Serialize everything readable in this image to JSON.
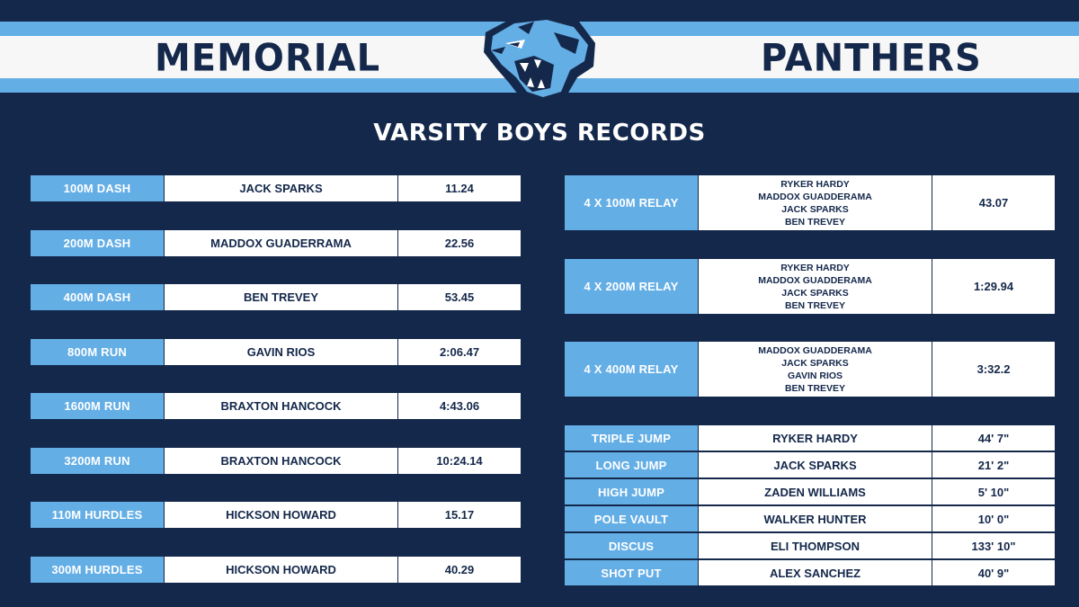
{
  "header": {
    "left_word": "MEMORIAL",
    "right_word": "PANTHERS",
    "logo_icon": "panther-head-icon",
    "title": "VARSITY BOYS RECORDS"
  },
  "colors": {
    "navy": "#14284b",
    "light_blue": "#64aee6",
    "white": "#ffffff"
  },
  "left_records": [
    {
      "event": "100M DASH",
      "athlete": "JACK SPARKS",
      "mark": "11.24"
    },
    {
      "event": "200M DASH",
      "athlete": "MADDOX GUADERRAMA",
      "mark": "22.56"
    },
    {
      "event": "400M DASH",
      "athlete": "BEN TREVEY",
      "mark": "53.45"
    },
    {
      "event": "800M RUN",
      "athlete": "GAVIN RIOS",
      "mark": "2:06.47"
    },
    {
      "event": "1600M RUN",
      "athlete": "BRAXTON HANCOCK",
      "mark": "4:43.06"
    },
    {
      "event": "3200M RUN",
      "athlete": "BRAXTON HANCOCK",
      "mark": "10:24.14"
    },
    {
      "event": "110M HURDLES",
      "athlete": "HICKSON HOWARD",
      "mark": "15.17"
    },
    {
      "event": "300M HURDLES",
      "athlete": "HICKSON HOWARD",
      "mark": "40.29"
    }
  ],
  "relays": [
    {
      "event": "4 X 100M RELAY",
      "athletes": [
        "RYKER HARDY",
        "MADDOX GUADDERAMA",
        "JACK SPARKS",
        "BEN TREVEY"
      ],
      "mark": "43.07"
    },
    {
      "event": "4 X 200M RELAY",
      "athletes": [
        "RYKER HARDY",
        "MADDOX GUADDERAMA",
        "JACK SPARKS",
        "BEN TREVEY"
      ],
      "mark": "1:29.94"
    },
    {
      "event": "4 X 400M RELAY",
      "athletes": [
        "MADDOX GUADDERAMA",
        "JACK SPARKS",
        "GAVIN RIOS",
        "BEN TREVEY"
      ],
      "mark": "3:32.2"
    }
  ],
  "field_records": [
    {
      "event": "TRIPLE JUMP",
      "athlete": "RYKER HARDY",
      "mark": "44' 7\""
    },
    {
      "event": "LONG JUMP",
      "athlete": "JACK SPARKS",
      "mark": "21' 2\""
    },
    {
      "event": "HIGH JUMP",
      "athlete": "ZADEN WILLIAMS",
      "mark": "5' 10\""
    },
    {
      "event": "POLE VAULT",
      "athlete": "WALKER HUNTER",
      "mark": "10' 0\""
    },
    {
      "event": "DISCUS",
      "athlete": "ELI THOMPSON",
      "mark": "133' 10\""
    },
    {
      "event": "SHOT PUT",
      "athlete": "ALEX SANCHEZ",
      "mark": "40' 9\""
    }
  ]
}
